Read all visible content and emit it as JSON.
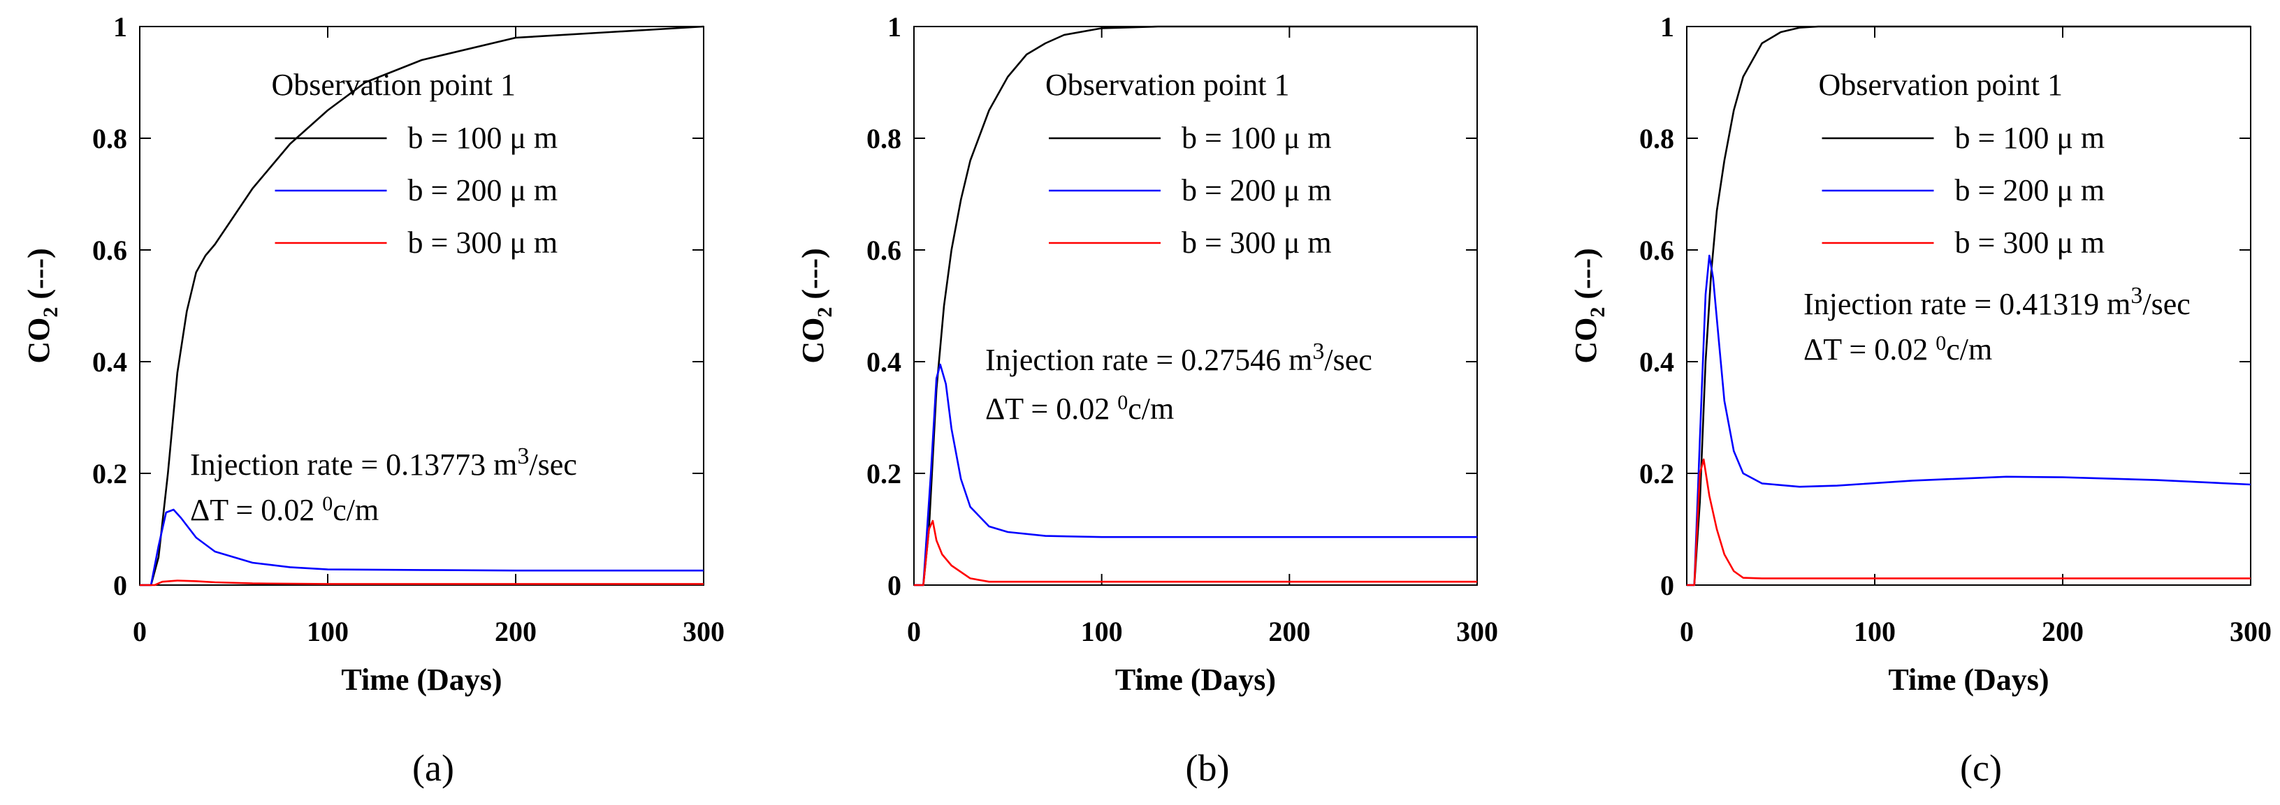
{
  "colors": {
    "b100": "#000000",
    "b200": "#0000ff",
    "b300": "#ff0000",
    "axis": "#000000"
  },
  "chart_data": [
    {
      "type": "line",
      "panel": "(a)",
      "xlabel": "Time (Days)",
      "ylabel": "CO",
      "ylabel_sub": "2",
      "ylabel_suffix": " (---)",
      "xlim": [
        0,
        300
      ],
      "ylim": [
        0,
        1
      ],
      "xticks": [
        0,
        100,
        200,
        300
      ],
      "yticks": [
        0,
        0.2,
        0.4,
        0.6,
        0.8,
        1
      ],
      "ytick_labels": [
        "0",
        "0.2",
        "0.4",
        "0.6",
        "0.8",
        "1"
      ],
      "legend_title": "Observation point 1",
      "legend_placement": "top-center",
      "annotation": {
        "rate_label": "Injection rate = 0.13773 m",
        "rate_sup": "3",
        "rate_unit": "/sec",
        "dt_label": "ΔT = 0.02 ",
        "dt_sup": "0",
        "dt_unit": "c/m"
      },
      "series": [
        {
          "name": "b = 100 μ m",
          "color_key": "b100",
          "x": [
            0,
            6,
            10,
            15,
            20,
            25,
            30,
            35,
            40,
            50,
            60,
            70,
            80,
            100,
            120,
            150,
            200,
            250,
            300
          ],
          "y": [
            0,
            0.0,
            0.05,
            0.2,
            0.38,
            0.49,
            0.56,
            0.59,
            0.61,
            0.66,
            0.71,
            0.75,
            0.79,
            0.85,
            0.9,
            0.94,
            0.98,
            0.99,
            1.0
          ]
        },
        {
          "name": "b = 200 μ m",
          "color_key": "b200",
          "x": [
            0,
            6,
            10,
            14,
            18,
            22,
            30,
            40,
            60,
            80,
            100,
            150,
            200,
            300
          ],
          "y": [
            0,
            0.0,
            0.07,
            0.13,
            0.135,
            0.12,
            0.085,
            0.06,
            0.04,
            0.032,
            0.028,
            0.027,
            0.026,
            0.026
          ]
        },
        {
          "name": "b = 300 μ m",
          "color_key": "b300",
          "x": [
            0,
            8,
            12,
            20,
            30,
            40,
            60,
            100,
            300
          ],
          "y": [
            0,
            0.0,
            0.006,
            0.008,
            0.007,
            0.005,
            0.003,
            0.002,
            0.002
          ]
        }
      ]
    },
    {
      "type": "line",
      "panel": "(b)",
      "xlabel": "Time (Days)",
      "ylabel": "CO",
      "ylabel_sub": "2",
      "ylabel_suffix": " (---)",
      "xlim": [
        0,
        300
      ],
      "ylim": [
        0,
        1
      ],
      "xticks": [
        0,
        100,
        200,
        300
      ],
      "yticks": [
        0,
        0.2,
        0.4,
        0.6,
        0.8,
        1
      ],
      "ytick_labels": [
        "0",
        "0.2",
        "0.4",
        "0.6",
        "0.8",
        "1"
      ],
      "legend_title": "Observation point 1",
      "legend_placement": "top-center",
      "annotation": {
        "rate_label": "Injection rate = 0.27546 m",
        "rate_sup": "3",
        "rate_unit": "/sec",
        "dt_label": "ΔT = 0.02 ",
        "dt_sup": "0",
        "dt_unit": "c/m"
      },
      "series": [
        {
          "name": "b = 100 μ m",
          "color_key": "b100",
          "x": [
            0,
            5,
            8,
            12,
            16,
            20,
            25,
            30,
            40,
            50,
            60,
            70,
            80,
            100,
            130,
            300
          ],
          "y": [
            0,
            0.0,
            0.1,
            0.35,
            0.5,
            0.6,
            0.69,
            0.76,
            0.85,
            0.91,
            0.95,
            0.97,
            0.985,
            0.997,
            1.0,
            1.0
          ]
        },
        {
          "name": "b = 200 μ m",
          "color_key": "b200",
          "x": [
            0,
            5,
            9,
            12,
            14,
            17,
            20,
            25,
            30,
            40,
            50,
            70,
            100,
            300
          ],
          "y": [
            0,
            0.0,
            0.2,
            0.37,
            0.395,
            0.36,
            0.28,
            0.19,
            0.14,
            0.105,
            0.095,
            0.088,
            0.086,
            0.086
          ]
        },
        {
          "name": "b = 300 μ m",
          "color_key": "b300",
          "x": [
            0,
            5,
            8,
            10,
            12,
            15,
            20,
            30,
            40,
            60,
            300
          ],
          "y": [
            0,
            0.0,
            0.1,
            0.115,
            0.08,
            0.055,
            0.035,
            0.012,
            0.006,
            0.006,
            0.006
          ]
        }
      ]
    },
    {
      "type": "line",
      "panel": "(c)",
      "xlabel": "Time (Days)",
      "ylabel": "CO",
      "ylabel_sub": "2",
      "ylabel_suffix": " (---)",
      "xlim": [
        0,
        300
      ],
      "ylim": [
        0,
        1
      ],
      "xticks": [
        0,
        100,
        200,
        300
      ],
      "yticks": [
        0,
        0.2,
        0.4,
        0.6,
        0.8,
        1
      ],
      "ytick_labels": [
        "0",
        "0.2",
        "0.4",
        "0.6",
        "0.8",
        "1"
      ],
      "legend_title": "Observation point 1",
      "legend_placement": "top-center",
      "annotation": {
        "rate_label": "Injection rate = 0.41319 m",
        "rate_sup": "3",
        "rate_unit": "/sec",
        "dt_label": "ΔT = 0.02 ",
        "dt_sup": "0",
        "dt_unit": "c/m"
      },
      "series": [
        {
          "name": "b = 100 μ m",
          "color_key": "b100",
          "x": [
            0,
            4,
            7,
            10,
            13,
            16,
            20,
            25,
            30,
            40,
            50,
            60,
            70,
            80,
            100,
            300
          ],
          "y": [
            0,
            0.0,
            0.15,
            0.4,
            0.56,
            0.67,
            0.76,
            0.85,
            0.91,
            0.97,
            0.99,
            0.998,
            1.0,
            1.0,
            1.0,
            1.0
          ]
        },
        {
          "name": "b = 200 μ m",
          "color_key": "b200",
          "x": [
            0,
            4,
            8,
            10,
            12,
            14,
            17,
            20,
            25,
            30,
            40,
            60,
            80,
            120,
            170,
            200,
            250,
            300
          ],
          "y": [
            0,
            0.0,
            0.35,
            0.52,
            0.59,
            0.55,
            0.44,
            0.33,
            0.24,
            0.2,
            0.182,
            0.176,
            0.178,
            0.187,
            0.194,
            0.193,
            0.188,
            0.18
          ]
        },
        {
          "name": "b = 300 μ m",
          "color_key": "b300",
          "x": [
            0,
            4,
            7,
            9,
            12,
            16,
            20,
            25,
            30,
            40,
            300
          ],
          "y": [
            0,
            0.0,
            0.2,
            0.225,
            0.16,
            0.1,
            0.055,
            0.025,
            0.013,
            0.012,
            0.012
          ]
        }
      ]
    }
  ]
}
